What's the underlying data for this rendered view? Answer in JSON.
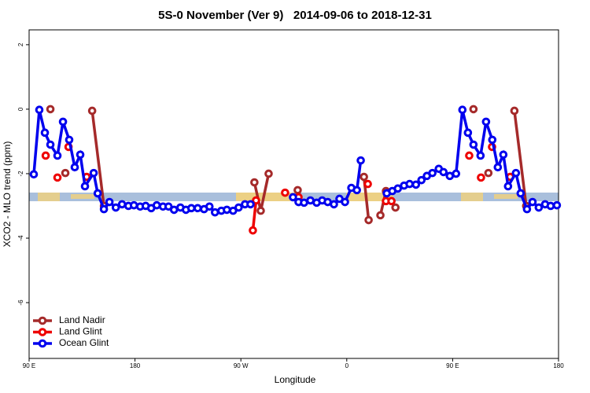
{
  "chart_data": {
    "type": "line",
    "title": "5S-0 November (Ver 9)   2014-09-06 to 2018-12-31",
    "x_label": "Longitude",
    "y_label": "XCO2 - MLO trend (ppm)",
    "xlim": [
      90,
      540
    ],
    "ylim": [
      -7.73,
      2.46
    ],
    "xticks": [
      {
        "value": 90,
        "label": "90 E"
      },
      {
        "value": 180,
        "label": "180"
      },
      {
        "value": 270,
        "label": "90 W"
      },
      {
        "value": 360,
        "label": "0"
      },
      {
        "value": 450,
        "label": "90 E"
      },
      {
        "value": 540,
        "label": "180"
      }
    ],
    "yticks": [
      -6,
      -4,
      -2,
      0,
      2
    ],
    "legend": "bottom-left",
    "series": [
      {
        "name": "Land Nadir",
        "color": "#a52a2a",
        "x": [
          108.1,
          112,
          120.8,
          130,
          143.6,
          153.6,
          200,
          281.5,
          286.9,
          293.6,
          305,
          318.3,
          340,
          374.6,
          378.6,
          383,
          388.6,
          393.3,
          397,
          401.4,
          430,
          467.7,
          472,
          480.4,
          490,
          502.5,
          512.5
        ],
        "values": [
          0.0,
          null,
          -1.98,
          null,
          -0.05,
          -3.0,
          null,
          -2.27,
          -3.15,
          -2.0,
          null,
          -2.51,
          null,
          -2.1,
          -3.44,
          null,
          -3.29,
          -2.54,
          null,
          -3.05,
          null,
          0.0,
          null,
          -1.98,
          null,
          -0.05,
          -3.0
        ]
      },
      {
        "name": "Land Glint",
        "color": "#ee0000",
        "x": [
          104.1,
          110,
          114.1,
          118,
          123.5,
          130,
          138.9,
          200,
          280.2,
          282.9,
          295,
          307.6,
          313,
          319.0,
          350,
          377.9,
          385,
          393.3,
          398.0,
          430,
          464.1,
          470,
          474.1,
          478,
          483.5,
          490,
          498.9
        ],
        "values": [
          -1.44,
          null,
          -2.12,
          null,
          -1.17,
          null,
          -2.1,
          null,
          -3.76,
          -2.83,
          null,
          -2.59,
          null,
          -2.73,
          null,
          -2.32,
          null,
          -2.85,
          -2.85,
          null,
          -1.44,
          null,
          -2.12,
          null,
          -1.17,
          null,
          -2.1
        ]
      },
      {
        "name": "Ocean Glint",
        "color": "#0000ee",
        "x": [
          94.0,
          98.7,
          103.4,
          108.1,
          114.1,
          118.8,
          124.1,
          128.8,
          133.5,
          137.5,
          144.9,
          148.3,
          153.6,
          158.3,
          163.7,
          169.0,
          174.4,
          179.1,
          184.4,
          189.1,
          193.8,
          198.5,
          203.8,
          208.5,
          213.2,
          218.6,
          223.3,
          227.9,
          233.3,
          238.7,
          243.3,
          248.0,
          253.4,
          258.1,
          263.4,
          268.1,
          273.5,
          278.2,
          300,
          314.3,
          319.0,
          323.7,
          329.1,
          334.4,
          339.1,
          343.8,
          349.1,
          353.8,
          358.5,
          363.9,
          368.6,
          371.9,
          385,
          394.0,
          398.7,
          403.4,
          408.7,
          413.4,
          418.8,
          423.5,
          428.1,
          432.8,
          438.2,
          442.2,
          447.6,
          452.9,
          458.3,
          463.0,
          467.7,
          473.7,
          478.4,
          483.7,
          488.4,
          493.1,
          497.1,
          503.8,
          507.8,
          513.2,
          517.9,
          523.2,
          528.6,
          533.3,
          538.6
        ],
        "values": [
          -2.02,
          -0.02,
          -0.73,
          -1.1,
          -1.44,
          -0.39,
          -0.95,
          -1.8,
          -1.41,
          -2.39,
          -1.98,
          -2.61,
          -3.1,
          -2.88,
          -3.05,
          -2.95,
          -3.0,
          -2.98,
          -3.02,
          -3.0,
          -3.07,
          -2.98,
          -3.02,
          -3.02,
          -3.12,
          -3.05,
          -3.12,
          -3.07,
          -3.07,
          -3.1,
          -3.02,
          -3.2,
          -3.15,
          -3.12,
          -3.15,
          -3.05,
          -2.95,
          -2.95,
          null,
          -2.73,
          -2.88,
          -2.9,
          -2.83,
          -2.9,
          -2.83,
          -2.88,
          -2.95,
          -2.78,
          -2.88,
          -2.44,
          -2.51,
          -1.59,
          null,
          -2.61,
          -2.54,
          -2.46,
          -2.37,
          -2.32,
          -2.34,
          -2.2,
          -2.07,
          -1.98,
          -1.85,
          -1.95,
          -2.07,
          -2.0,
          -0.02,
          -0.73,
          -1.1,
          -1.44,
          -0.39,
          -0.95,
          -1.8,
          -1.41,
          -2.39,
          -1.98,
          -2.61,
          -3.1,
          -2.88,
          -3.05,
          -2.95,
          -3.0,
          -2.98
        ]
      }
    ]
  }
}
